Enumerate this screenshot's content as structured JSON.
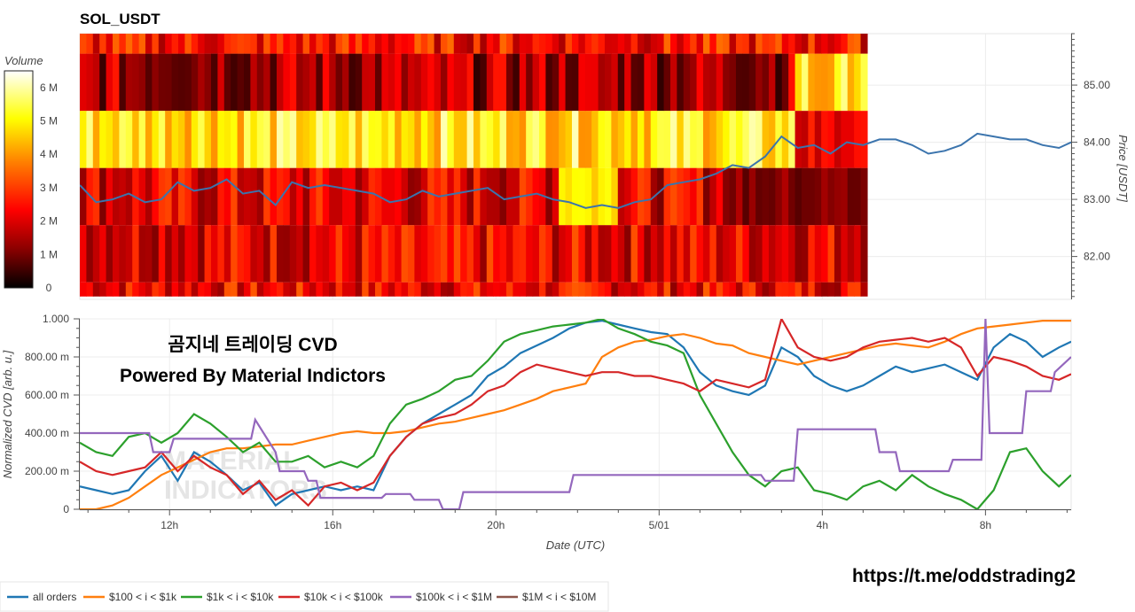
{
  "chart_data": [
    {
      "type": "heatmap",
      "title": "SOL_USDT",
      "colorbar": {
        "label": "Volume",
        "ticks": [
          "0",
          "1 M",
          "2 M",
          "3 M",
          "4 M",
          "5 M",
          "6 M"
        ],
        "range": [
          0,
          6.5
        ],
        "colors": [
          "#000000",
          "#8b0000",
          "#ff0000",
          "#ff8000",
          "#ffff00",
          "#ffffff"
        ]
      },
      "x_ticks": [
        "12h",
        "16h",
        "20h",
        "5/01",
        "4h",
        "8h"
      ],
      "x_tick_hours": [
        12,
        16,
        20,
        24,
        28,
        32
      ],
      "x_range_hours": [
        9.8,
        34.1
      ],
      "heatmap_end_hour": 29.1,
      "ylabel": "Price [USDT]",
      "y_ticks": [
        "82.00",
        "83.00",
        "84.00",
        "85.00"
      ],
      "y_tick_values": [
        82,
        83,
        84,
        85
      ],
      "ylim": [
        81.25,
        85.9
      ],
      "price_bins": [
        {
          "low": 81.3,
          "high": 81.55,
          "level": 2.3
        },
        {
          "low": 81.55,
          "high": 82.55,
          "level": 2.2
        },
        {
          "low": 82.55,
          "high": 83.55,
          "level": 2.1
        },
        {
          "low": 83.55,
          "high": 84.55,
          "level": 5.0
        },
        {
          "low": 84.55,
          "high": 85.55,
          "level": 1.5
        },
        {
          "low": 85.55,
          "high": 85.9,
          "level": 2.5
        }
      ],
      "series": [
        {
          "name": "Price",
          "color": "#3b74ad",
          "x": [
            9.8,
            10.2,
            10.6,
            11.0,
            11.4,
            11.8,
            12.2,
            12.6,
            13.0,
            13.4,
            13.8,
            14.2,
            14.6,
            15.0,
            15.4,
            15.8,
            16.2,
            16.6,
            17.0,
            17.4,
            17.8,
            18.2,
            18.6,
            19.0,
            19.4,
            19.8,
            20.2,
            20.6,
            21.0,
            21.4,
            21.8,
            22.2,
            22.6,
            23.0,
            23.4,
            23.8,
            24.2,
            24.6,
            25.0,
            25.4,
            25.8,
            26.2,
            26.6,
            27.0,
            27.4,
            27.8,
            28.2,
            28.6,
            29.0,
            29.4,
            29.8,
            30.2,
            30.6,
            31.0,
            31.4,
            31.8,
            32.2,
            32.6,
            33.0,
            33.4,
            33.8,
            34.1
          ],
          "y": [
            83.25,
            82.95,
            83.0,
            83.1,
            82.95,
            83.0,
            83.3,
            83.15,
            83.2,
            83.35,
            83.1,
            83.15,
            82.9,
            83.3,
            83.2,
            83.25,
            83.2,
            83.15,
            83.1,
            82.95,
            83.0,
            83.15,
            83.05,
            83.1,
            83.15,
            83.2,
            83.0,
            83.05,
            83.1,
            83.0,
            82.95,
            82.85,
            82.9,
            82.85,
            82.95,
            83.0,
            83.25,
            83.3,
            83.35,
            83.45,
            83.6,
            83.55,
            83.75,
            84.1,
            83.9,
            83.95,
            83.8,
            84.0,
            83.95,
            84.05,
            84.05,
            83.95,
            83.8,
            83.85,
            83.95,
            84.15,
            84.1,
            84.05,
            84.05,
            83.95,
            83.9,
            84.0
          ]
        }
      ]
    },
    {
      "type": "line",
      "xlabel": "Date (UTC)",
      "ylabel": "Normalized CVD [arb. u.]",
      "x_ticks": [
        "12h",
        "16h",
        "20h",
        "5/01",
        "4h",
        "8h"
      ],
      "x_tick_hours": [
        12,
        16,
        20,
        24,
        28,
        32
      ],
      "x_range_hours": [
        9.8,
        34.1
      ],
      "y_ticks": [
        "0",
        "200.00 m",
        "400.00 m",
        "600.00 m",
        "800.00 m",
        "1.000"
      ],
      "y_tick_values": [
        0,
        0.2,
        0.4,
        0.6,
        0.8,
        1.0
      ],
      "ylim": [
        0,
        1.0
      ],
      "annotations": [
        "곰지네 트레이딩 CVD",
        "Powered By Material Indictors"
      ],
      "watermark": [
        "MATERIAL",
        "INDICATORS"
      ],
      "legend": "bottom",
      "series": [
        {
          "name": "all orders",
          "color": "#1f77b4",
          "x": [
            9.8,
            10.2,
            10.6,
            11.0,
            11.4,
            11.8,
            12.2,
            12.6,
            13.0,
            13.4,
            13.8,
            14.2,
            14.6,
            15.0,
            15.4,
            15.8,
            16.2,
            16.6,
            17.0,
            17.4,
            17.8,
            18.2,
            18.6,
            19.0,
            19.4,
            19.8,
            20.2,
            20.6,
            21.0,
            21.4,
            21.8,
            22.2,
            22.6,
            23.0,
            23.4,
            23.8,
            24.2,
            24.6,
            25.0,
            25.4,
            25.8,
            26.2,
            26.6,
            27.0,
            27.4,
            27.8,
            28.2,
            28.6,
            29.0,
            29.4,
            29.8,
            30.2,
            30.6,
            31.0,
            31.4,
            31.8,
            32.2,
            32.6,
            33.0,
            33.4,
            33.8,
            34.1
          ],
          "y": [
            0.12,
            0.1,
            0.08,
            0.1,
            0.2,
            0.28,
            0.15,
            0.3,
            0.25,
            0.18,
            0.1,
            0.14,
            0.02,
            0.08,
            0.1,
            0.12,
            0.1,
            0.12,
            0.1,
            0.28,
            0.38,
            0.45,
            0.5,
            0.55,
            0.6,
            0.7,
            0.75,
            0.82,
            0.86,
            0.9,
            0.95,
            0.98,
            0.99,
            0.97,
            0.95,
            0.93,
            0.92,
            0.85,
            0.72,
            0.65,
            0.62,
            0.6,
            0.65,
            0.85,
            0.8,
            0.7,
            0.65,
            0.62,
            0.65,
            0.7,
            0.75,
            0.72,
            0.74,
            0.76,
            0.72,
            0.68,
            0.85,
            0.92,
            0.88,
            0.8,
            0.85,
            0.88
          ]
        },
        {
          "name": "$100 < i < $1k",
          "color": "#ff7f0e",
          "x": [
            9.8,
            10.2,
            10.6,
            11.0,
            11.4,
            11.8,
            12.2,
            12.6,
            13.0,
            13.4,
            13.8,
            14.2,
            14.6,
            15.0,
            15.4,
            15.8,
            16.2,
            16.6,
            17.0,
            17.4,
            17.8,
            18.2,
            18.6,
            19.0,
            19.4,
            19.8,
            20.2,
            20.6,
            21.0,
            21.4,
            21.8,
            22.2,
            22.6,
            23.0,
            23.4,
            23.8,
            24.2,
            24.6,
            25.0,
            25.4,
            25.8,
            26.2,
            26.6,
            27.0,
            27.4,
            27.8,
            28.2,
            28.6,
            29.0,
            29.4,
            29.8,
            30.2,
            30.6,
            31.0,
            31.4,
            31.8,
            32.2,
            32.6,
            33.0,
            33.4,
            33.8,
            34.1
          ],
          "y": [
            0.0,
            0.0,
            0.02,
            0.06,
            0.12,
            0.18,
            0.22,
            0.26,
            0.3,
            0.32,
            0.32,
            0.33,
            0.34,
            0.34,
            0.36,
            0.38,
            0.4,
            0.41,
            0.4,
            0.4,
            0.41,
            0.43,
            0.45,
            0.46,
            0.48,
            0.5,
            0.52,
            0.55,
            0.58,
            0.62,
            0.64,
            0.66,
            0.8,
            0.85,
            0.88,
            0.89,
            0.91,
            0.92,
            0.9,
            0.87,
            0.86,
            0.82,
            0.8,
            0.78,
            0.76,
            0.78,
            0.8,
            0.82,
            0.84,
            0.86,
            0.87,
            0.86,
            0.85,
            0.88,
            0.92,
            0.95,
            0.96,
            0.97,
            0.98,
            0.99,
            0.99,
            0.99
          ]
        },
        {
          "name": "$1k < i < $10k",
          "color": "#2ca02c",
          "x": [
            9.8,
            10.2,
            10.6,
            11.0,
            11.4,
            11.8,
            12.2,
            12.6,
            13.0,
            13.4,
            13.8,
            14.2,
            14.6,
            15.0,
            15.4,
            15.8,
            16.2,
            16.6,
            17.0,
            17.4,
            17.8,
            18.2,
            18.6,
            19.0,
            19.4,
            19.8,
            20.2,
            20.6,
            21.0,
            21.4,
            21.8,
            22.2,
            22.6,
            23.0,
            23.4,
            23.8,
            24.2,
            24.6,
            25.0,
            25.4,
            25.8,
            26.2,
            26.6,
            27.0,
            27.4,
            27.8,
            28.2,
            28.6,
            29.0,
            29.4,
            29.8,
            30.2,
            30.6,
            31.0,
            31.4,
            31.8,
            32.2,
            32.6,
            33.0,
            33.4,
            33.8,
            34.1
          ],
          "y": [
            0.35,
            0.3,
            0.28,
            0.38,
            0.4,
            0.35,
            0.4,
            0.5,
            0.45,
            0.38,
            0.3,
            0.35,
            0.25,
            0.25,
            0.28,
            0.22,
            0.25,
            0.22,
            0.28,
            0.45,
            0.55,
            0.58,
            0.62,
            0.68,
            0.7,
            0.78,
            0.88,
            0.92,
            0.94,
            0.96,
            0.97,
            0.98,
            1.0,
            0.95,
            0.92,
            0.88,
            0.86,
            0.82,
            0.6,
            0.45,
            0.3,
            0.18,
            0.12,
            0.2,
            0.22,
            0.1,
            0.08,
            0.05,
            0.12,
            0.15,
            0.1,
            0.18,
            0.12,
            0.08,
            0.05,
            0.0,
            0.1,
            0.3,
            0.32,
            0.2,
            0.12,
            0.18
          ]
        },
        {
          "name": "$10k < i < $100k",
          "color": "#d62728",
          "x": [
            9.8,
            10.2,
            10.6,
            11.0,
            11.4,
            11.8,
            12.2,
            12.6,
            13.0,
            13.4,
            13.8,
            14.2,
            14.6,
            15.0,
            15.4,
            15.8,
            16.2,
            16.6,
            17.0,
            17.4,
            17.8,
            18.2,
            18.6,
            19.0,
            19.4,
            19.8,
            20.2,
            20.6,
            21.0,
            21.4,
            21.8,
            22.2,
            22.6,
            23.0,
            23.4,
            23.8,
            24.2,
            24.6,
            25.0,
            25.4,
            25.8,
            26.2,
            26.6,
            27.0,
            27.4,
            27.8,
            28.2,
            28.6,
            29.0,
            29.4,
            29.8,
            30.2,
            30.6,
            31.0,
            31.4,
            31.8,
            32.2,
            32.6,
            33.0,
            33.4,
            33.8,
            34.1
          ],
          "y": [
            0.25,
            0.2,
            0.18,
            0.2,
            0.22,
            0.3,
            0.2,
            0.28,
            0.22,
            0.18,
            0.08,
            0.15,
            0.05,
            0.1,
            0.02,
            0.12,
            0.14,
            0.1,
            0.14,
            0.28,
            0.38,
            0.45,
            0.48,
            0.5,
            0.55,
            0.62,
            0.65,
            0.72,
            0.76,
            0.74,
            0.72,
            0.7,
            0.72,
            0.72,
            0.7,
            0.7,
            0.68,
            0.66,
            0.62,
            0.68,
            0.66,
            0.64,
            0.68,
            1.0,
            0.85,
            0.8,
            0.78,
            0.8,
            0.85,
            0.88,
            0.89,
            0.9,
            0.88,
            0.9,
            0.85,
            0.7,
            0.8,
            0.78,
            0.75,
            0.7,
            0.68,
            0.71
          ]
        },
        {
          "name": "$100k < i < $1M",
          "color": "#9467bd",
          "x": [
            9.8,
            11.5,
            11.6,
            12.0,
            12.1,
            14.0,
            14.1,
            14.6,
            14.7,
            15.3,
            15.4,
            15.6,
            15.7,
            17.2,
            17.3,
            17.9,
            18.0,
            18.6,
            18.7,
            19.1,
            19.2,
            21.8,
            21.9,
            26.5,
            26.6,
            27.3,
            27.4,
            29.3,
            29.4,
            29.8,
            29.9,
            31.1,
            31.2,
            31.9,
            32.0,
            32.1,
            32.2,
            32.9,
            33.0,
            33.6,
            33.7,
            34.1
          ],
          "y": [
            0.4,
            0.4,
            0.3,
            0.3,
            0.37,
            0.37,
            0.47,
            0.3,
            0.2,
            0.2,
            0.15,
            0.15,
            0.06,
            0.06,
            0.08,
            0.08,
            0.05,
            0.05,
            0.0,
            0.0,
            0.09,
            0.09,
            0.18,
            0.18,
            0.15,
            0.15,
            0.42,
            0.42,
            0.3,
            0.3,
            0.2,
            0.2,
            0.26,
            0.26,
            1.0,
            0.4,
            0.4,
            0.4,
            0.62,
            0.62,
            0.72,
            0.8
          ]
        },
        {
          "name": "$1M < i < $10M",
          "color": "#8c564b",
          "x": [],
          "y": []
        }
      ]
    }
  ],
  "footer": {
    "link": "https://t.me/oddstrading2"
  }
}
